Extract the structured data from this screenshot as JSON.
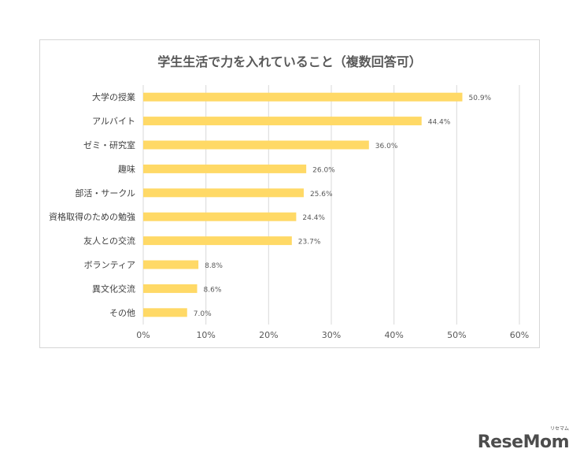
{
  "chart_data": {
    "type": "bar",
    "orientation": "horizontal",
    "title": "学生生活で力を入れていること（複数回答可）",
    "categories": [
      "大学の授業",
      "アルバイト",
      "ゼミ・研究室",
      "趣味",
      "部活・サークル",
      "資格取得のための勉強",
      "友人との交流",
      "ボランティア",
      "異文化交流",
      "その他"
    ],
    "values": [
      50.9,
      44.4,
      36.0,
      26.0,
      25.6,
      24.4,
      23.7,
      8.8,
      8.6,
      7.0
    ],
    "value_labels": [
      "50.9%",
      "44.4%",
      "36.0%",
      "26.0%",
      "25.6%",
      "24.4%",
      "23.7%",
      "8.8%",
      "8.6%",
      "7.0%"
    ],
    "xlim": [
      0,
      60
    ],
    "xticks": [
      "0%",
      "10%",
      "20%",
      "30%",
      "40%",
      "50%",
      "60%"
    ],
    "xlabel": "",
    "ylabel": "",
    "grid": true,
    "bar_color": "#ffd966"
  },
  "logo": {
    "text": "ReseMom",
    "small": "リセマム"
  }
}
